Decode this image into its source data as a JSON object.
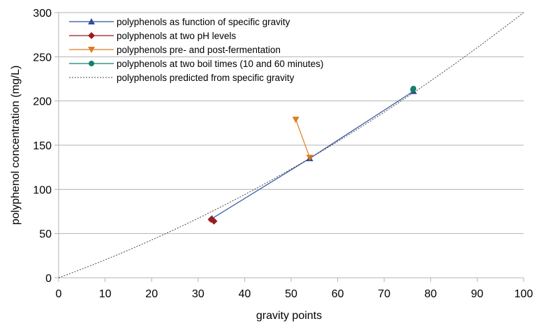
{
  "chart_data": {
    "type": "line",
    "title": "",
    "xlabel": "gravity points",
    "ylabel": "polyphenol concentration (mg/L)",
    "xlim": [
      0,
      100
    ],
    "ylim": [
      0,
      300
    ],
    "x_ticks": [
      "0",
      "10",
      "20",
      "30",
      "40",
      "50",
      "60",
      "70",
      "80",
      "90",
      "100"
    ],
    "y_ticks": [
      "0",
      "50",
      "100",
      "150",
      "200",
      "250",
      "300"
    ],
    "grid": "horizontal",
    "legend_position": "top-left",
    "series": [
      {
        "name": "polyphenols as function of specific gravity",
        "color": "#2f4f9f",
        "marker": "triangle-up",
        "line": "solid",
        "points": [
          [
            33,
            67
          ],
          [
            54,
            135
          ],
          [
            76.3,
            211
          ]
        ]
      },
      {
        "name": "polyphenols at two pH levels",
        "color": "#9c1b1b",
        "marker": "diamond",
        "line": "solid",
        "points": [
          [
            32.8,
            66
          ],
          [
            33.4,
            64
          ]
        ]
      },
      {
        "name": "polyphenols pre- and post-fermentation",
        "color": "#e07b1f",
        "marker": "triangle-down",
        "line": "solid",
        "points": [
          [
            51,
            179
          ],
          [
            54,
            136
          ]
        ]
      },
      {
        "name": "polyphenols at two boil times (10 and 60 minutes)",
        "color": "#12806b",
        "marker": "circle",
        "line": "solid",
        "points": [
          [
            76.2,
            213
          ],
          [
            76.3,
            214
          ]
        ]
      },
      {
        "name": "polyphenols predicted from specific gravity",
        "color": "#444444",
        "marker": "none",
        "line": "dotted",
        "curve": {
          "form": "y = a*x + b*x^2",
          "a": 1.92,
          "b": 0.0108,
          "x_range": [
            0,
            100
          ]
        }
      }
    ]
  }
}
